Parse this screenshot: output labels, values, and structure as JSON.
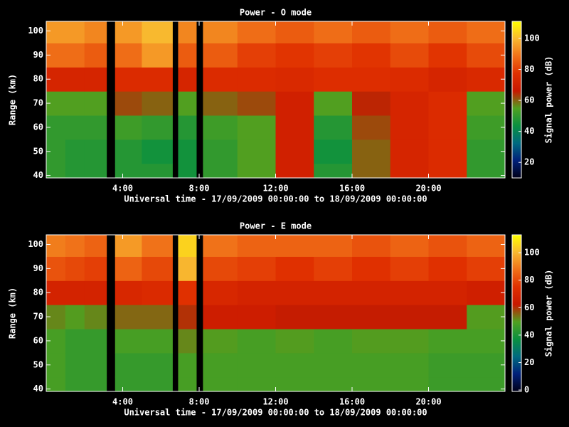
{
  "chart_data": [
    {
      "type": "heatmap",
      "title": "Power - O mode",
      "ylabel": "Range (km)",
      "xlabel": "Universal time - 17/09/2009 00:00:00 to 18/09/2009 00:00:00",
      "colorbar_label": "Signal power (dB)",
      "x_bins": [
        0,
        1,
        2,
        3.15,
        3.6,
        5,
        6.6,
        6.9,
        7.85,
        8.2,
        10,
        12,
        14,
        16,
        18,
        20,
        22,
        24
      ],
      "y_bins": [
        39,
        45,
        55,
        65,
        75,
        85,
        95,
        104
      ],
      "values": [
        [
          50,
          48,
          48,
          null,
          48,
          48,
          null,
          45,
          null,
          50,
          55,
          70,
          48,
          60,
          72,
          75,
          50
        ],
        [
          50,
          48,
          48,
          null,
          48,
          45,
          null,
          45,
          null,
          50,
          55,
          70,
          45,
          60,
          72,
          75,
          50
        ],
        [
          50,
          50,
          50,
          null,
          52,
          50,
          null,
          48,
          null,
          52,
          55,
          70,
          48,
          62,
          72,
          75,
          52
        ],
        [
          55,
          55,
          55,
          null,
          62,
          60,
          null,
          55,
          null,
          60,
          62,
          70,
          55,
          65,
          72,
          75,
          55
        ],
        [
          72,
          72,
          72,
          null,
          75,
          75,
          null,
          72,
          null,
          75,
          75,
          74,
          76,
          76,
          75,
          72,
          74
        ],
        [
          88,
          88,
          85,
          null,
          88,
          95,
          null,
          85,
          null,
          85,
          80,
          78,
          80,
          78,
          82,
          78,
          82
        ],
        [
          95,
          95,
          92,
          null,
          95,
          100,
          null,
          92,
          null,
          92,
          88,
          85,
          88,
          85,
          88,
          85,
          88
        ]
      ],
      "xlim": [
        0,
        24
      ],
      "xticks": [
        {
          "value": 4,
          "label": "4:00"
        },
        {
          "value": 8,
          "label": "8:00"
        },
        {
          "value": 12,
          "label": "12:00"
        },
        {
          "value": 16,
          "label": "16:00"
        },
        {
          "value": 20,
          "label": "20:00"
        }
      ],
      "ylim": [
        39,
        104
      ],
      "yticks": [
        40,
        50,
        60,
        70,
        80,
        90,
        100
      ],
      "clim": [
        10,
        111
      ],
      "cticks": [
        20,
        40,
        60,
        80,
        100
      ],
      "colormap": [
        "#000018",
        "#00207a",
        "#006a80",
        "#0a9040",
        "#50a020",
        "#c81800",
        "#e03000",
        "#f07018",
        "#f8b830",
        "#ffff00"
      ]
    },
    {
      "type": "heatmap",
      "title": "Power - E mode",
      "ylabel": "Range (km)",
      "xlabel": "Universal time - 17/09/2009 00:00:00 to 18/09/2009 00:00:00",
      "colorbar_label": "Signal power (dB)",
      "x_bins": [
        0,
        1,
        2,
        3.15,
        3.6,
        5,
        6.6,
        6.9,
        7.85,
        8.2,
        10,
        12,
        14,
        16,
        18,
        20,
        22,
        24
      ],
      "y_bins": [
        39,
        45,
        55,
        65,
        75,
        85,
        95,
        104
      ],
      "values": [
        [
          48,
          45,
          45,
          null,
          45,
          45,
          null,
          48,
          null,
          48,
          48,
          48,
          48,
          48,
          48,
          46,
          46
        ],
        [
          48,
          45,
          45,
          null,
          45,
          45,
          null,
          48,
          null,
          48,
          48,
          48,
          48,
          48,
          48,
          46,
          46
        ],
        [
          48,
          45,
          45,
          null,
          48,
          48,
          null,
          52,
          null,
          50,
          48,
          50,
          48,
          50,
          50,
          48,
          48
        ],
        [
          52,
          50,
          52,
          null,
          55,
          55,
          null,
          60,
          null,
          65,
          65,
          62,
          62,
          62,
          62,
          62,
          50
        ],
        [
          68,
          68,
          68,
          null,
          70,
          72,
          null,
          75,
          null,
          70,
          68,
          68,
          68,
          68,
          68,
          68,
          66
        ],
        [
          82,
          80,
          78,
          null,
          85,
          80,
          null,
          100,
          null,
          80,
          78,
          75,
          78,
          75,
          78,
          75,
          78
        ],
        [
          90,
          88,
          85,
          null,
          95,
          88,
          null,
          105,
          null,
          88,
          85,
          85,
          85,
          82,
          85,
          82,
          85
        ]
      ],
      "xlim": [
        0,
        24
      ],
      "xticks": [
        {
          "value": 4,
          "label": "4:00"
        },
        {
          "value": 8,
          "label": "8:00"
        },
        {
          "value": 12,
          "label": "12:00"
        },
        {
          "value": 16,
          "label": "16:00"
        },
        {
          "value": 20,
          "label": "20:00"
        }
      ],
      "ylim": [
        39,
        104
      ],
      "yticks": [
        40,
        50,
        60,
        70,
        80,
        90,
        100
      ],
      "clim": [
        -1,
        113
      ],
      "cticks": [
        0,
        20,
        40,
        60,
        80,
        100
      ],
      "colormap": [
        "#000018",
        "#00207a",
        "#006a80",
        "#0a9040",
        "#50a020",
        "#c81800",
        "#e03000",
        "#f07018",
        "#f8b830",
        "#ffff00"
      ]
    }
  ]
}
